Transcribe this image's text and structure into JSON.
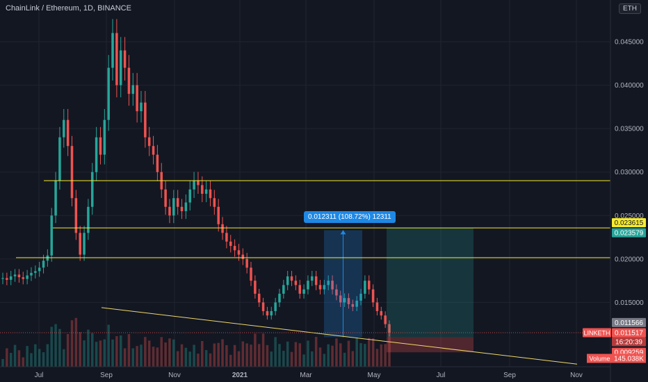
{
  "header": {
    "symbol_line": "ChainLink / Ethereum, 1D, BINANCE",
    "currency_button": "ETH"
  },
  "measure": {
    "label": "0.012311 (108.72%) 12311"
  },
  "colors": {
    "background": "#131722",
    "grid": "#1f2430",
    "up": "#26a69a",
    "down": "#ef5350",
    "level_line": "#f7ec2d",
    "trend_line": "#f0d96a",
    "axis_text": "#b2b5be",
    "measure_blue": "#1e88e5"
  },
  "chart_data": {
    "type": "candlestick",
    "title": "ChainLink / Ethereum, 1D, BINANCE",
    "ylim": [
      0.0076,
      0.0498
    ],
    "y_ticks": [
      "0.015000",
      "0.020000",
      "0.025000",
      "0.030000",
      "0.035000",
      "0.040000",
      "0.045000"
    ],
    "x_ticks": [
      "Jul",
      "Sep",
      "Nov",
      "2021",
      "Mar",
      "May",
      "Jul",
      "Sep",
      "Nov"
    ],
    "horizontal_levels": [
      {
        "value": 0.029012,
        "label": "0.029012",
        "style": "yellow"
      },
      {
        "value": 0.023579,
        "label": "0.023579",
        "style": "yellow"
      },
      {
        "value": 0.020146,
        "label": "0.020146",
        "style": "yellow"
      }
    ],
    "price_labels": [
      {
        "value": 0.023615,
        "text": "0.023615",
        "style": "yellow"
      },
      {
        "value": 0.023579,
        "text": "0.023579",
        "style": "green"
      },
      {
        "value": 0.011566,
        "text": "0.011566",
        "style": "gray"
      },
      {
        "value": 0.011517,
        "text": "0.011517",
        "style": "red",
        "tag": "LINKETH",
        "extra": "16:20:39"
      },
      {
        "value": 0.009259,
        "text": "0.009259",
        "style": "red"
      }
    ],
    "volume": {
      "label": "Volume",
      "value": "145.038K"
    },
    "trend_line": {
      "from_date": "Aug 2020",
      "from": 0.0144,
      "to_date": "Nov 2021",
      "to": 0.0079
    },
    "measure_range": {
      "low": 0.011,
      "high": 0.023311,
      "change": "0.012311",
      "percent": "108.72%",
      "bars": "12311"
    },
    "position": {
      "entry": 0.011,
      "target": 0.023579,
      "stop": 0.009259
    },
    "series": [
      {
        "name": "LINKETH",
        "close": [
          0.0178,
          0.0176,
          0.018,
          0.0182,
          0.0179,
          0.0177,
          0.0181,
          0.0184,
          0.0186,
          0.019,
          0.0198,
          0.0204,
          0.025,
          0.029,
          0.034,
          0.036,
          0.033,
          0.027,
          0.023,
          0.0205,
          0.023,
          0.026,
          0.03,
          0.034,
          0.032,
          0.036,
          0.042,
          0.046,
          0.04,
          0.044,
          0.042,
          0.039,
          0.04,
          0.037,
          0.038,
          0.034,
          0.033,
          0.032,
          0.03,
          0.028,
          0.026,
          0.025,
          0.027,
          0.026,
          0.0255,
          0.0265,
          0.028,
          0.029,
          0.0285,
          0.0275,
          0.028,
          0.027,
          0.026,
          0.024,
          0.023,
          0.022,
          0.0215,
          0.021,
          0.0205,
          0.02,
          0.019,
          0.0175,
          0.016,
          0.015,
          0.014,
          0.0135,
          0.014,
          0.015,
          0.016,
          0.017,
          0.018,
          0.0175,
          0.017,
          0.016,
          0.0165,
          0.0175,
          0.018,
          0.017,
          0.0165,
          0.017,
          0.0175,
          0.0165,
          0.0158,
          0.015,
          0.0155,
          0.0148,
          0.0145,
          0.0152,
          0.016,
          0.0175,
          0.0165,
          0.015,
          0.014,
          0.0135,
          0.0125,
          0.0115
        ]
      }
    ]
  }
}
